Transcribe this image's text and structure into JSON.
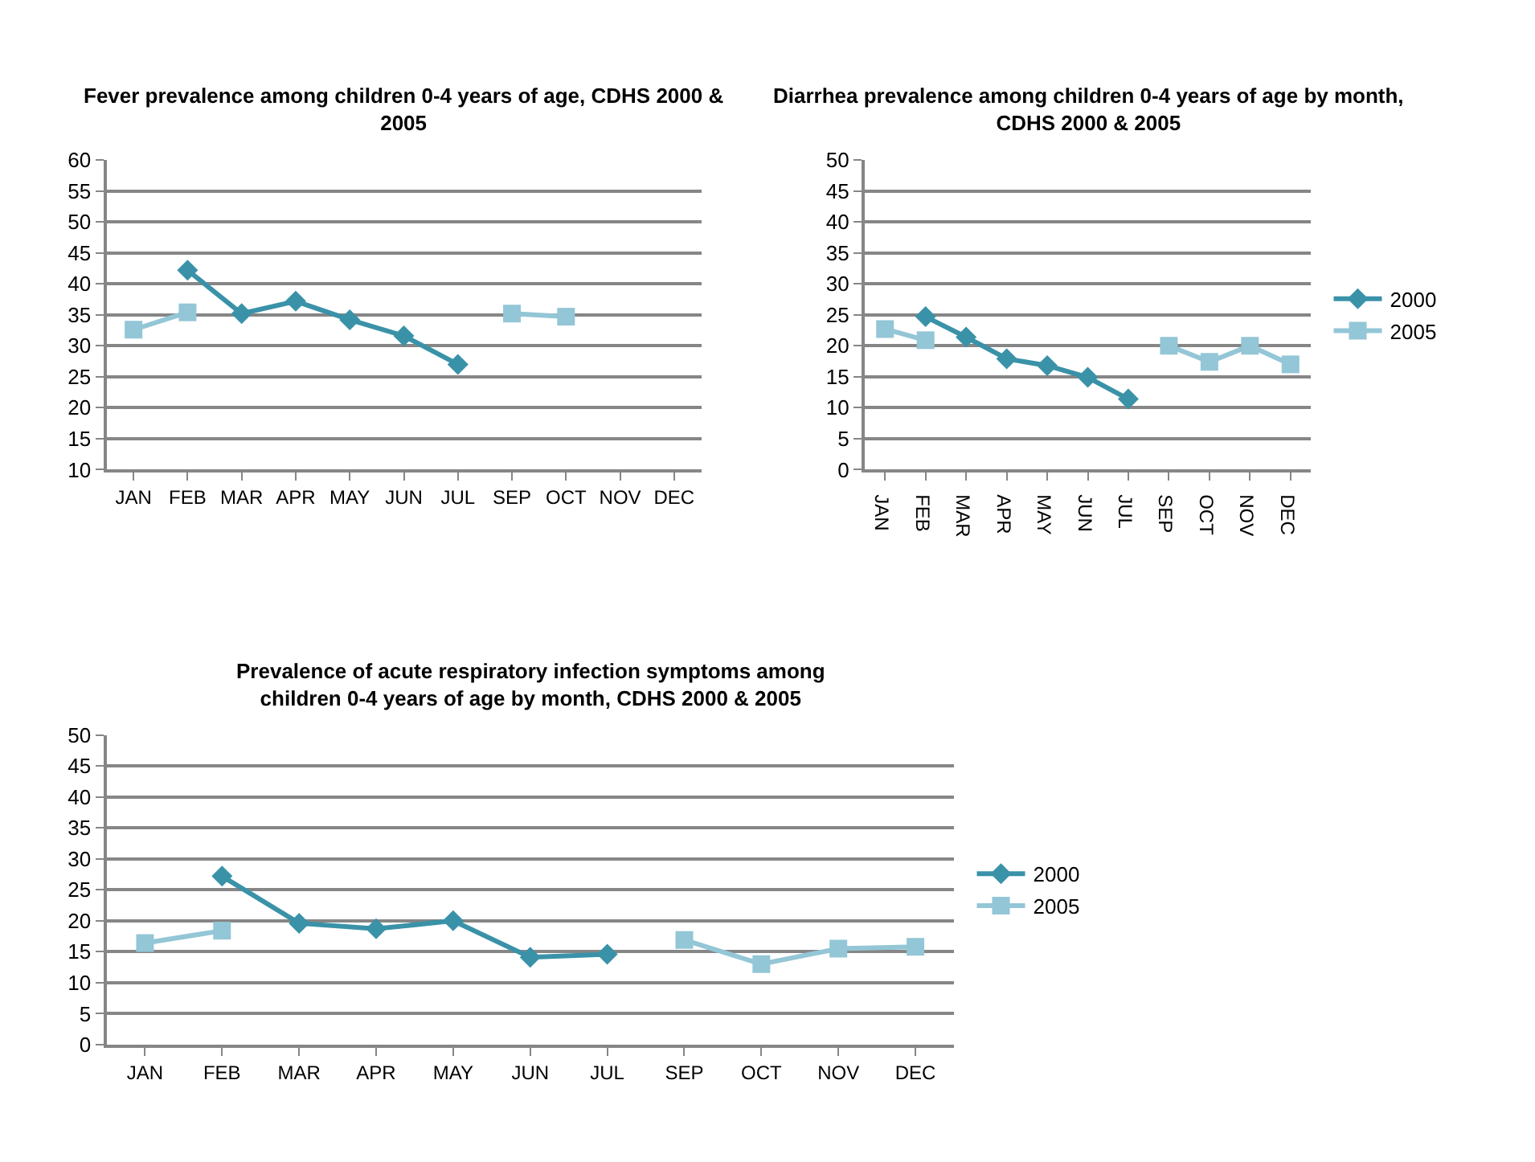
{
  "chart_data": [
    {
      "type": "line",
      "title": "Fever prevalence among children 0-4 years of age, CDHS 2000 & 2005",
      "categories": [
        "JAN",
        "FEB",
        "MAR",
        "APR",
        "MAY",
        "JUN",
        "JUL",
        "SEP",
        "OCT",
        "NOV",
        "DEC"
      ],
      "ylim": [
        10,
        60
      ],
      "yticks": [
        10,
        15,
        20,
        25,
        30,
        35,
        40,
        45,
        50,
        55,
        60
      ],
      "grid": "y",
      "legend": false,
      "series": [
        {
          "color": "#3a92a8",
          "marker": "diamond",
          "values": [
            null,
            42.2,
            35.2,
            37.2,
            34.2,
            31.6,
            27.0,
            null,
            null,
            null,
            null
          ]
        },
        {
          "color": "#93c6d6",
          "marker": "square",
          "values": [
            32.6,
            35.4,
            null,
            null,
            null,
            null,
            null,
            35.2,
            34.7,
            null,
            null
          ]
        }
      ]
    },
    {
      "type": "line",
      "title": "Diarrhea prevalence among children 0-4 years of age by month, CDHS 2000 & 2005",
      "categories": [
        "JAN",
        "FEB",
        "MAR",
        "APR",
        "MAY",
        "JUN",
        "JUL",
        "SEP",
        "OCT",
        "NOV",
        "DEC"
      ],
      "ylim": [
        0,
        50
      ],
      "yticks": [
        0,
        5,
        10,
        15,
        20,
        25,
        30,
        35,
        40,
        45,
        50
      ],
      "grid": "y",
      "legend": "right",
      "series": [
        {
          "name": "2000",
          "color": "#3a92a8",
          "marker": "diamond",
          "values": [
            null,
            24.7,
            21.4,
            17.9,
            16.8,
            14.9,
            11.4,
            null,
            null,
            null,
            null
          ]
        },
        {
          "name": "2005",
          "color": "#93c6d6",
          "marker": "square",
          "values": [
            22.7,
            20.9,
            null,
            null,
            null,
            null,
            null,
            20.0,
            17.4,
            20.0,
            17.0
          ]
        }
      ]
    },
    {
      "type": "line",
      "title": "Prevalence of acute respiratory infection symptoms among children 0-4 years of age by month, CDHS 2000 & 2005",
      "categories": [
        "JAN",
        "FEB",
        "MAR",
        "APR",
        "MAY",
        "JUN",
        "JUL",
        "SEP",
        "OCT",
        "NOV",
        "DEC"
      ],
      "ylim": [
        0,
        50
      ],
      "yticks": [
        0,
        5,
        10,
        15,
        20,
        25,
        30,
        35,
        40,
        45,
        50
      ],
      "grid": "y",
      "legend": "right",
      "series": [
        {
          "name": "2000",
          "color": "#3a92a8",
          "marker": "diamond",
          "values": [
            null,
            27.2,
            19.6,
            18.7,
            20.0,
            14.1,
            14.6,
            null,
            null,
            null,
            null
          ]
        },
        {
          "name": "2005",
          "color": "#93c6d6",
          "marker": "square",
          "values": [
            16.4,
            18.4,
            null,
            null,
            null,
            null,
            null,
            16.9,
            13.0,
            15.5,
            15.8
          ]
        }
      ]
    }
  ]
}
